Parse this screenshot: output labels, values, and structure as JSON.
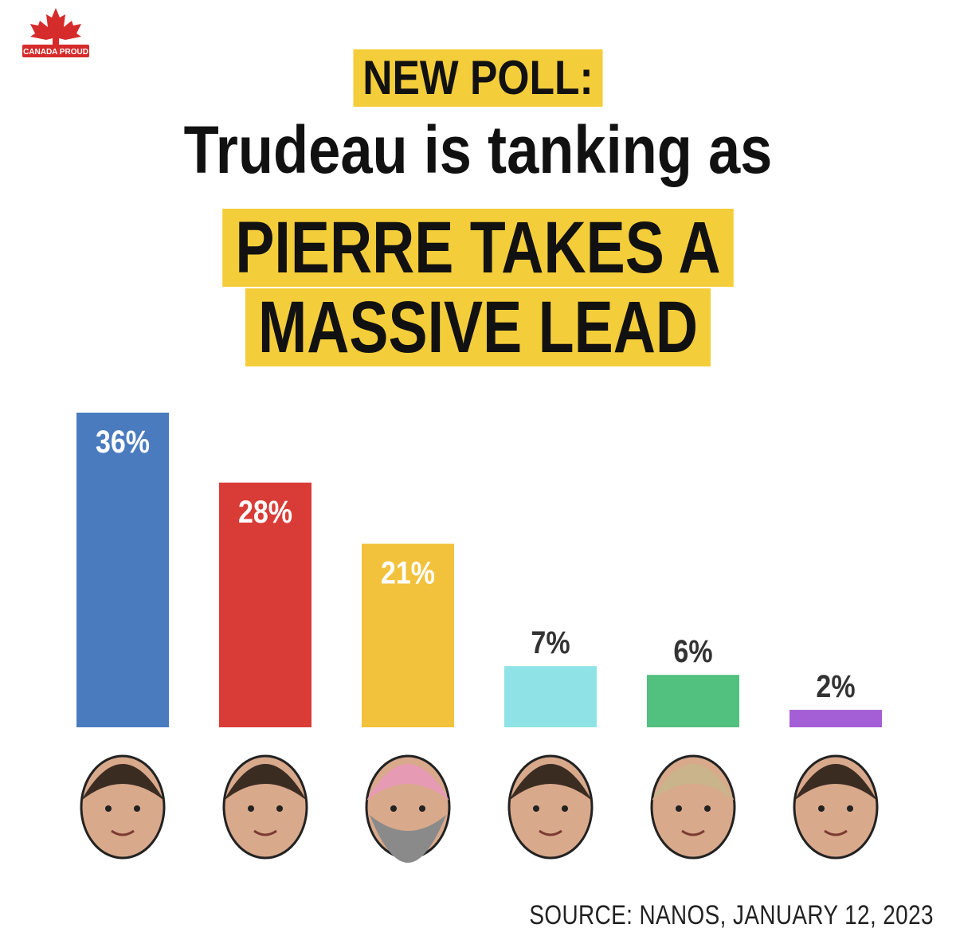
{
  "brand": {
    "logo_text": "CANADA PROUD",
    "logo_color": "#d62b2b"
  },
  "headline": {
    "line1": "NEW POLL:",
    "line2": "Trudeau is tanking as",
    "line3": "PIERRE TAKES A",
    "line4": "MASSIVE LEAD",
    "highlight_color": "#f4cd3a"
  },
  "chart_data": {
    "type": "bar",
    "title": "",
    "xlabel": "",
    "ylabel": "",
    "ylim": [
      0,
      36
    ],
    "grid": false,
    "categories": [
      "",
      "",
      "",
      "",
      "",
      ""
    ],
    "values": [
      36,
      28,
      21,
      7,
      6,
      2
    ],
    "labels": [
      "36%",
      "28%",
      "21%",
      "7%",
      "6%",
      "2%"
    ],
    "colors": [
      "#4a7bbf",
      "#d93c36",
      "#f2c23d",
      "#8fe3e6",
      "#52c07f",
      "#a55fd6"
    ],
    "label_inside": [
      true,
      true,
      true,
      false,
      false,
      false
    ],
    "category_images": [
      "portrait-icon",
      "portrait-icon",
      "portrait-icon",
      "portrait-icon",
      "portrait-icon",
      "portrait-icon"
    ]
  },
  "source": "SOURCE: NANOS, JANUARY 12, 2023"
}
